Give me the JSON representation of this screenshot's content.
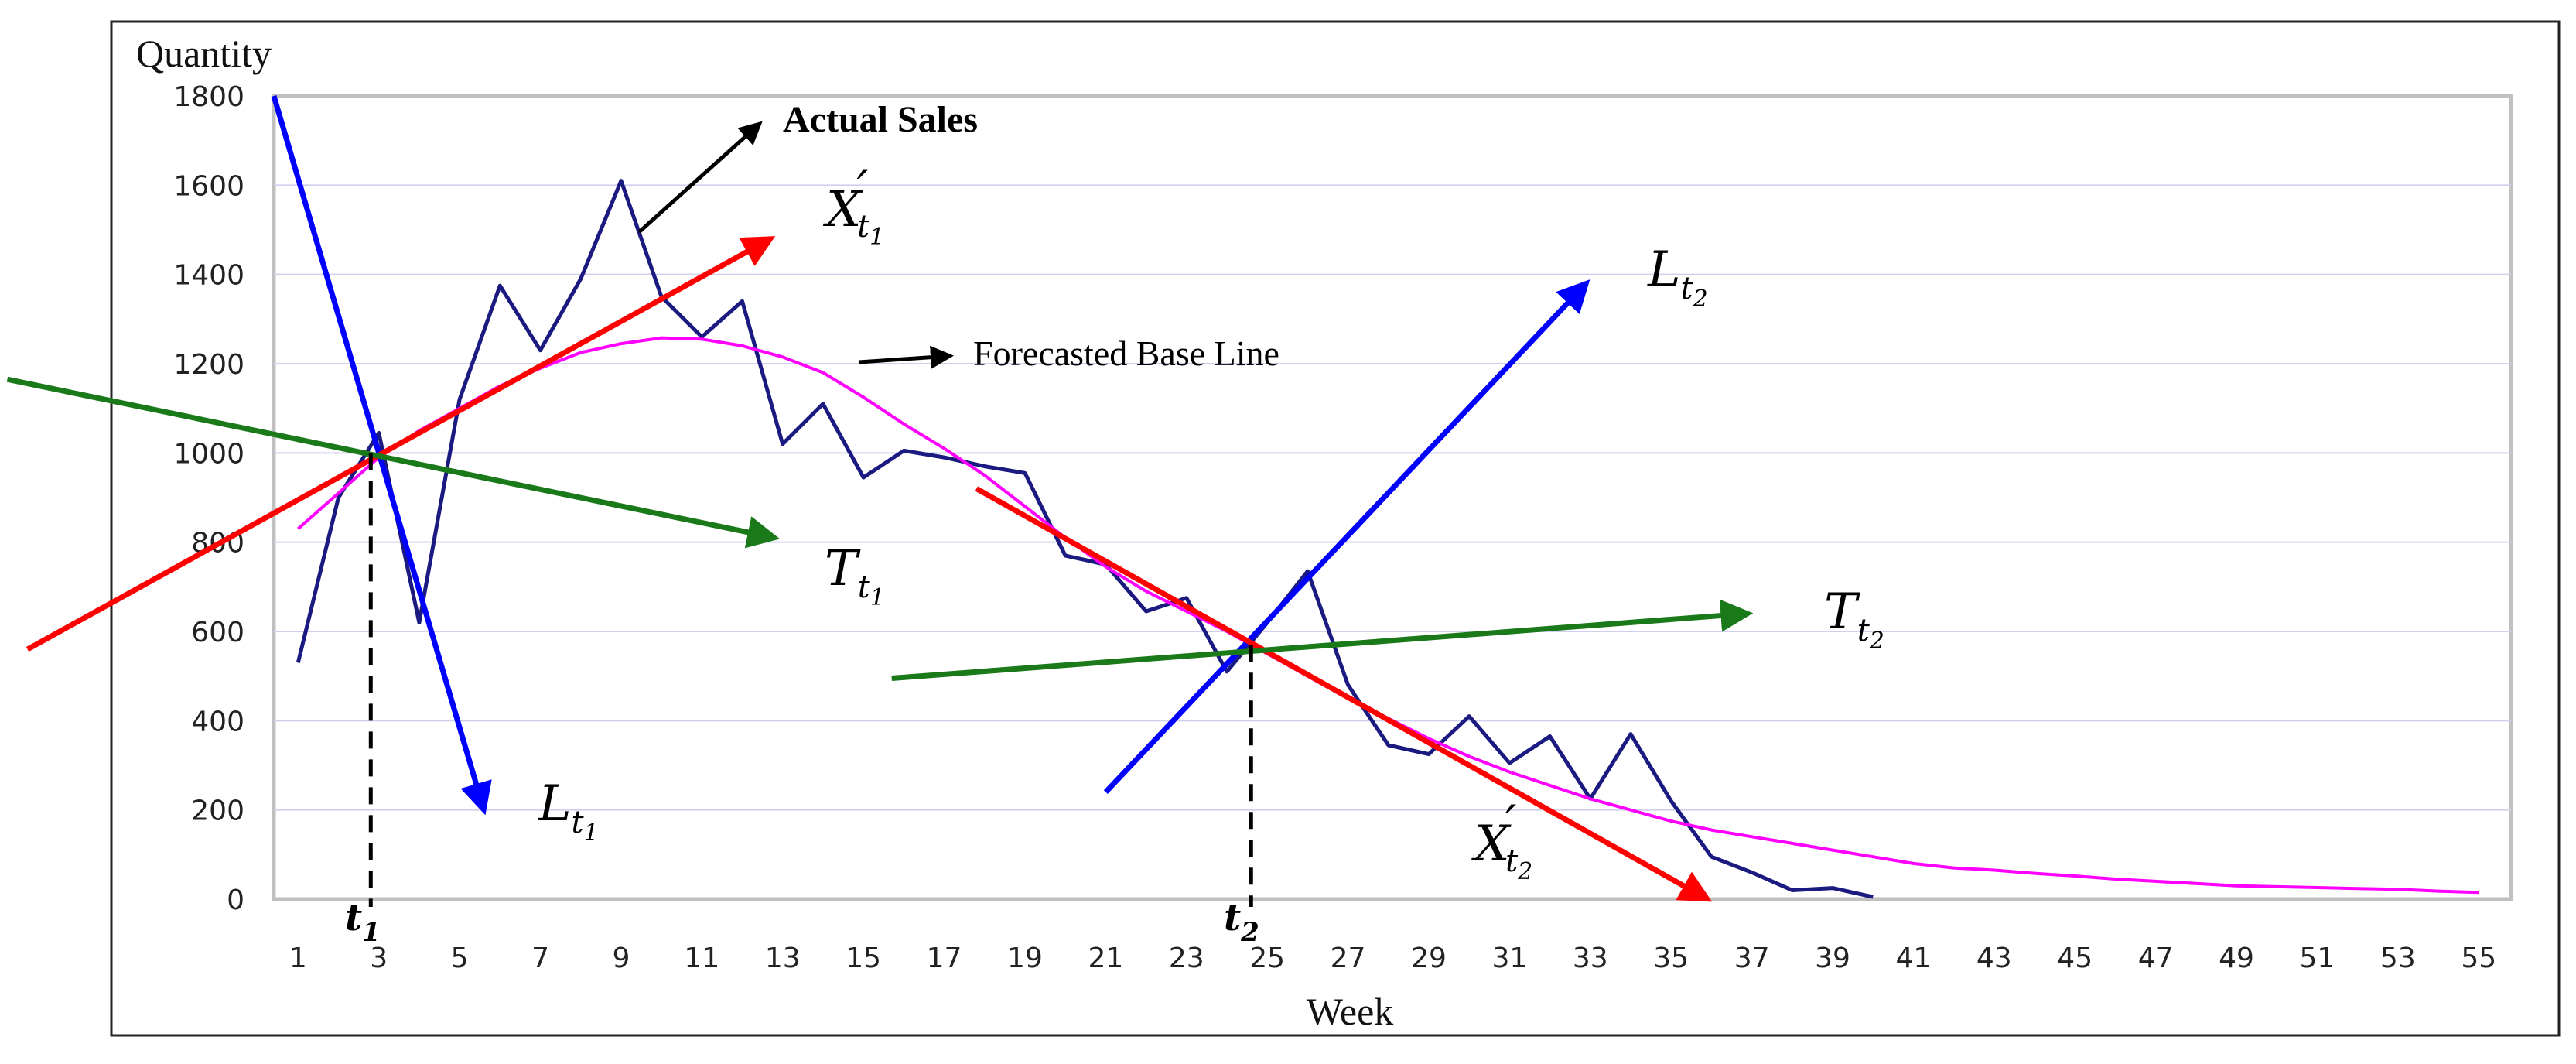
{
  "chart_data": {
    "type": "line",
    "title": "",
    "xlabel": "Week",
    "ylabel": "Quantity",
    "xlim": [
      0.4,
      55.8
    ],
    "ylim": [
      0,
      1800
    ],
    "x_ticks": [
      1,
      3,
      5,
      7,
      9,
      11,
      13,
      15,
      17,
      19,
      21,
      23,
      25,
      27,
      29,
      31,
      33,
      35,
      37,
      39,
      41,
      43,
      45,
      47,
      49,
      51,
      53,
      55
    ],
    "y_ticks": [
      0,
      200,
      400,
      600,
      800,
      1000,
      1200,
      1400,
      1600,
      1800
    ],
    "grid": "horizontal",
    "series": [
      {
        "name": "Actual Sales",
        "color": "#1a1a80",
        "x": [
          1,
          2,
          3,
          4,
          5,
          6,
          7,
          8,
          9,
          10,
          11,
          12,
          13,
          14,
          15,
          16,
          17,
          18,
          19,
          20,
          21,
          22,
          23,
          24,
          25,
          26,
          27,
          28,
          29,
          30,
          31,
          32,
          33,
          34,
          35,
          36,
          37,
          38,
          39,
          40
        ],
        "values": [
          530,
          900,
          1045,
          620,
          1120,
          1375,
          1230,
          1390,
          1610,
          1350,
          1260,
          1340,
          1020,
          1110,
          945,
          1005,
          990,
          970,
          955,
          770,
          750,
          645,
          675,
          510,
          620,
          735,
          480,
          345,
          325,
          410,
          305,
          365,
          225,
          370,
          220,
          95,
          60,
          20,
          25,
          5
        ]
      },
      {
        "name": "Forecasted Base Line",
        "color": "#ff00ff",
        "x": [
          1,
          2,
          3,
          4,
          5,
          6,
          7,
          8,
          9,
          10,
          11,
          12,
          13,
          14,
          15,
          16,
          17,
          18,
          19,
          20,
          21,
          22,
          23,
          24,
          25,
          26,
          27,
          28,
          29,
          30,
          31,
          32,
          33,
          34,
          35,
          36,
          37,
          38,
          39,
          40,
          41,
          42,
          43,
          44,
          45,
          46,
          47,
          48,
          49,
          50,
          51,
          52,
          53,
          54,
          55
        ],
        "values": [
          830,
          910,
          990,
          1050,
          1100,
          1150,
          1190,
          1225,
          1245,
          1258,
          1255,
          1240,
          1215,
          1180,
          1125,
          1065,
          1010,
          950,
          880,
          810,
          745,
          690,
          645,
          600,
          550,
          500,
          450,
          405,
          360,
          320,
          285,
          255,
          225,
          200,
          175,
          155,
          140,
          125,
          110,
          95,
          80,
          70,
          65,
          58,
          52,
          45,
          40,
          35,
          30,
          28,
          26,
          24,
          22,
          18,
          15
        ]
      }
    ],
    "arrows": [
      {
        "name": "L_t1",
        "color": "#0000ff",
        "from": [
          0.4,
          1800
        ],
        "to": [
          5.6,
          200
        ]
      },
      {
        "name": "X_t1_prime",
        "color": "#ff0000",
        "from": [
          -5.7,
          560
        ],
        "to": [
          12.7,
          1480
        ]
      },
      {
        "name": "T_t1",
        "color": "#1a7a1a",
        "from": [
          -6.2,
          1165
        ],
        "to": [
          12.8,
          810
        ]
      },
      {
        "name": "L_t2",
        "color": "#0000ff",
        "from": [
          21,
          240
        ],
        "to": [
          32.9,
          1380
        ]
      },
      {
        "name": "X_t2_prime",
        "color": "#ff0000",
        "from": [
          17.8,
          920
        ],
        "to": [
          35.9,
          0
        ]
      },
      {
        "name": "T_t2",
        "color": "#1a7a1a",
        "from": [
          15.7,
          495
        ],
        "to": [
          36.9,
          640
        ]
      }
    ],
    "markers": [
      {
        "label": "t1",
        "x": 2.8,
        "y": 1000
      },
      {
        "label": "t2",
        "x": 24.6,
        "y": 570
      }
    ],
    "annotations": {
      "actual_sales": "Actual Sales",
      "forecasted_base_line": "Forecasted Base Line",
      "x_t1": {
        "main": "X",
        "prime": "′",
        "sub": "t",
        "subsub": "1"
      },
      "x_t2": {
        "main": "X",
        "prime": "′",
        "sub": "t",
        "subsub": "2"
      },
      "l_t1": {
        "main": "L",
        "sub": "t",
        "subsub": "1"
      },
      "l_t2": {
        "main": "L",
        "sub": "t",
        "subsub": "2"
      },
      "t_t1": {
        "main": "T",
        "sub": "t",
        "subsub": "1"
      },
      "t_t2": {
        "main": "T",
        "sub": "t",
        "subsub": "2"
      },
      "t1_label": {
        "main": "t",
        "sub": "1"
      },
      "t2_label": {
        "main": "t",
        "sub": "2"
      }
    }
  }
}
